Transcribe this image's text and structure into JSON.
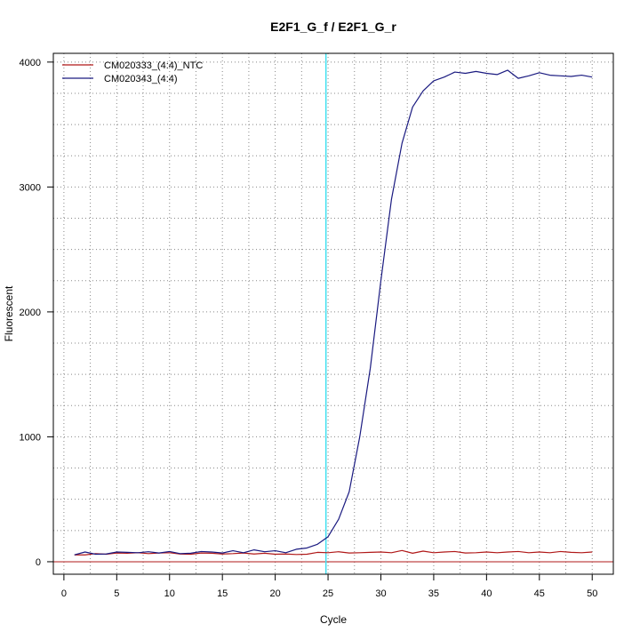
{
  "chart_data": {
    "type": "line",
    "title": "E2F1_G_f / E2F1_G_r",
    "xlabel": "Cycle",
    "ylabel": "Fluorescent",
    "xlim": [
      -1,
      52
    ],
    "ylim": [
      -100,
      4070
    ],
    "x_ticks": [
      0,
      5,
      10,
      15,
      20,
      25,
      30,
      35,
      40,
      45,
      50
    ],
    "y_ticks": [
      0,
      1000,
      2000,
      3000,
      4000
    ],
    "grid": true,
    "legend_position": "top-left",
    "threshold": {
      "type": "vertical",
      "x": 24.8,
      "color": "#40e0f0"
    },
    "baseline": {
      "type": "horizontal",
      "y": 0,
      "color": "#b01818"
    },
    "x": [
      1,
      2,
      3,
      4,
      5,
      6,
      7,
      8,
      9,
      10,
      11,
      12,
      13,
      14,
      15,
      16,
      17,
      18,
      19,
      20,
      21,
      22,
      23,
      24,
      25,
      26,
      27,
      28,
      29,
      30,
      31,
      32,
      33,
      34,
      35,
      36,
      37,
      38,
      39,
      40,
      41,
      42,
      43,
      44,
      45,
      46,
      47,
      48,
      49,
      50
    ],
    "series": [
      {
        "name": "CM020333_(4:4)_NTC",
        "color": "#b01818",
        "values": [
          55,
          55,
          65,
          60,
          70,
          68,
          72,
          65,
          70,
          72,
          62,
          60,
          70,
          68,
          62,
          65,
          70,
          62,
          68,
          60,
          62,
          58,
          60,
          75,
          72,
          80,
          70,
          72,
          75,
          78,
          72,
          90,
          68,
          85,
          72,
          78,
          82,
          70,
          72,
          78,
          72,
          78,
          82,
          72,
          78,
          72,
          82,
          75,
          72,
          78
        ]
      },
      {
        "name": "CM020343_(4:4)",
        "color": "#1a1a80",
        "values": [
          55,
          78,
          60,
          62,
          78,
          75,
          72,
          80,
          70,
          82,
          65,
          68,
          82,
          78,
          70,
          88,
          72,
          95,
          80,
          88,
          72,
          100,
          110,
          140,
          200,
          340,
          560,
          1000,
          1550,
          2250,
          2900,
          3350,
          3640,
          3770,
          3850,
          3880,
          3920,
          3910,
          3925,
          3910,
          3900,
          3935,
          3870,
          3890,
          3915,
          3895,
          3890,
          3885,
          3895,
          3880
        ]
      }
    ]
  }
}
